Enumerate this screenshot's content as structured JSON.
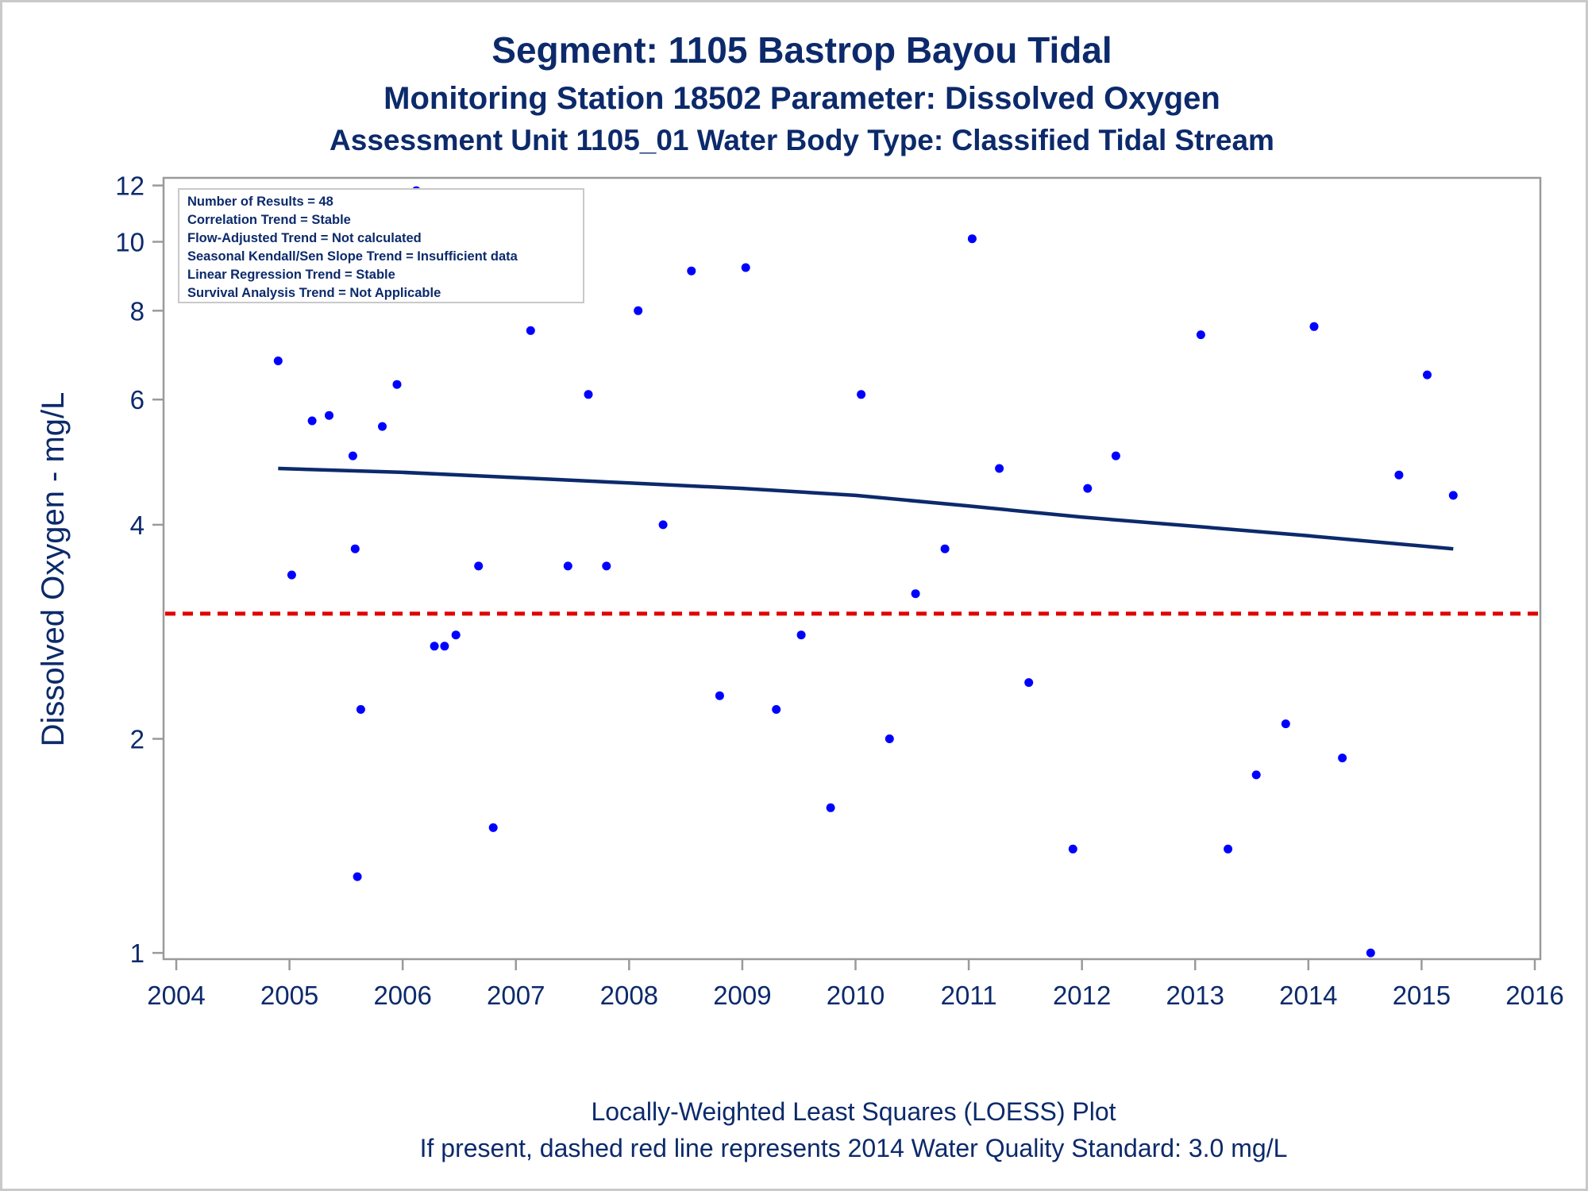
{
  "chart_data": {
    "type": "scatter",
    "title": "Segment: 1105  Bastrop Bayou Tidal",
    "subtitle": "Monitoring Station 18502 Parameter: Dissolved Oxygen",
    "subtitle2": "Assessment Unit 1105_01   Water Body Type: Classified Tidal Stream",
    "ylabel": "Dissolved Oxygen - mg/L",
    "xlabel": "",
    "y_scale": "log",
    "xlim": [
      2004,
      2016
    ],
    "ylim": [
      0.98,
      12.3
    ],
    "x_ticks": [
      "2004",
      "2005",
      "2006",
      "2007",
      "2008",
      "2009",
      "2010",
      "2011",
      "2012",
      "2013",
      "2014",
      "2015",
      "2016"
    ],
    "y_ticks": [
      "1",
      "2",
      "4",
      "6",
      "8",
      "10",
      "12"
    ],
    "y_tick_values": [
      1,
      2,
      4,
      6,
      8,
      10,
      12
    ],
    "standard_line": {
      "value": 3.0,
      "style": "dashed",
      "color": "#e00000"
    },
    "colors": {
      "points": "#0000ff",
      "loess": "#0c2a6b",
      "text": "#0c2a6b",
      "axis": "#9a9a9a"
    },
    "info_box": [
      "Number of Results = 48",
      "Correlation Trend = Stable",
      "Flow-Adjusted Trend = Not calculated",
      "Seasonal Kendall/Sen Slope Trend = Insufficient data",
      "Linear Regression Trend = Stable",
      "Survival Analysis Trend = Not Applicable"
    ],
    "points": [
      {
        "x": 2004.9,
        "y": 6.8
      },
      {
        "x": 2005.02,
        "y": 3.4
      },
      {
        "x": 2005.2,
        "y": 5.6
      },
      {
        "x": 2005.35,
        "y": 5.7
      },
      {
        "x": 2005.56,
        "y": 5.0
      },
      {
        "x": 2005.58,
        "y": 3.7
      },
      {
        "x": 2005.6,
        "y": 1.28
      },
      {
        "x": 2005.63,
        "y": 2.2
      },
      {
        "x": 2005.82,
        "y": 5.5
      },
      {
        "x": 2005.95,
        "y": 6.3
      },
      {
        "x": 2006.12,
        "y": 11.8
      },
      {
        "x": 2006.28,
        "y": 2.7
      },
      {
        "x": 2006.37,
        "y": 2.7
      },
      {
        "x": 2006.47,
        "y": 2.8
      },
      {
        "x": 2006.67,
        "y": 3.5
      },
      {
        "x": 2006.8,
        "y": 1.5
      },
      {
        "x": 2007.13,
        "y": 7.5
      },
      {
        "x": 2007.46,
        "y": 3.5
      },
      {
        "x": 2007.64,
        "y": 6.1
      },
      {
        "x": 2007.8,
        "y": 3.5
      },
      {
        "x": 2008.08,
        "y": 8.0
      },
      {
        "x": 2008.3,
        "y": 4.0
      },
      {
        "x": 2008.55,
        "y": 9.1
      },
      {
        "x": 2008.8,
        "y": 2.3
      },
      {
        "x": 2009.03,
        "y": 9.2
      },
      {
        "x": 2009.3,
        "y": 2.2
      },
      {
        "x": 2009.52,
        "y": 2.8
      },
      {
        "x": 2009.78,
        "y": 1.6
      },
      {
        "x": 2010.05,
        "y": 6.1
      },
      {
        "x": 2010.3,
        "y": 2.0
      },
      {
        "x": 2010.53,
        "y": 3.2
      },
      {
        "x": 2010.79,
        "y": 3.7
      },
      {
        "x": 2011.03,
        "y": 10.1
      },
      {
        "x": 2011.27,
        "y": 4.8
      },
      {
        "x": 2011.53,
        "y": 2.4
      },
      {
        "x": 2011.92,
        "y": 1.4
      },
      {
        "x": 2012.05,
        "y": 4.5
      },
      {
        "x": 2012.3,
        "y": 5.0
      },
      {
        "x": 2013.05,
        "y": 7.4
      },
      {
        "x": 2013.29,
        "y": 1.4
      },
      {
        "x": 2013.54,
        "y": 1.78
      },
      {
        "x": 2013.8,
        "y": 2.1
      },
      {
        "x": 2014.05,
        "y": 7.6
      },
      {
        "x": 2014.3,
        "y": 1.88
      },
      {
        "x": 2014.55,
        "y": 1.0
      },
      {
        "x": 2014.8,
        "y": 4.7
      },
      {
        "x": 2015.05,
        "y": 6.5
      },
      {
        "x": 2015.28,
        "y": 4.4
      }
    ],
    "loess": [
      {
        "x": 2004.9,
        "y": 4.8
      },
      {
        "x": 2006.0,
        "y": 4.74
      },
      {
        "x": 2007.0,
        "y": 4.66
      },
      {
        "x": 2008.0,
        "y": 4.58
      },
      {
        "x": 2009.0,
        "y": 4.5
      },
      {
        "x": 2010.0,
        "y": 4.4
      },
      {
        "x": 2011.0,
        "y": 4.25
      },
      {
        "x": 2012.0,
        "y": 4.1
      },
      {
        "x": 2013.0,
        "y": 3.98
      },
      {
        "x": 2014.0,
        "y": 3.86
      },
      {
        "x": 2015.28,
        "y": 3.7
      }
    ]
  },
  "footer": {
    "line1": "Locally-Weighted Least Squares (LOESS) Plot",
    "line2": "If present, dashed red line represents 2014 Water Quality Standard: 3.0 mg/L"
  }
}
